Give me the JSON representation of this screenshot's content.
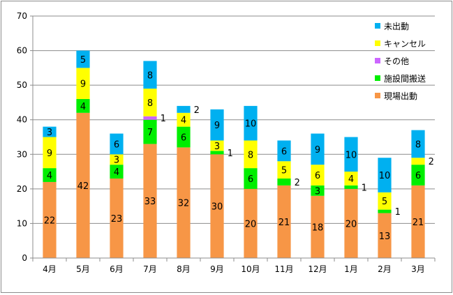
{
  "chart_data": {
    "type": "bar",
    "stacked": true,
    "categories": [
      "4月",
      "5月",
      "6月",
      "7月",
      "8月",
      "9月",
      "10月",
      "11月",
      "12月",
      "1月",
      "2月",
      "3月"
    ],
    "series": [
      {
        "name": "現場出動",
        "color": "#f79646",
        "values": [
          22,
          42,
          23,
          33,
          32,
          30,
          20,
          21,
          18,
          20,
          13,
          21
        ]
      },
      {
        "name": "施設間搬送",
        "color": "#00ee00",
        "values": [
          4,
          4,
          4,
          7,
          6,
          1,
          6,
          2,
          3,
          1,
          1,
          6
        ]
      },
      {
        "name": "その他",
        "color": "#cc66ff",
        "values": [
          0,
          0,
          0,
          1,
          0,
          0,
          0,
          0,
          0,
          0,
          0,
          0
        ]
      },
      {
        "name": "キャンセル",
        "color": "#ffff00",
        "values": [
          9,
          9,
          3,
          8,
          4,
          3,
          8,
          5,
          6,
          4,
          5,
          2
        ]
      },
      {
        "name": "未出動",
        "color": "#00b0f0",
        "values": [
          3,
          5,
          6,
          8,
          2,
          9,
          10,
          6,
          9,
          10,
          10,
          8
        ]
      }
    ],
    "ylim": [
      0,
      70
    ],
    "yticks": [
      0,
      10,
      20,
      30,
      40,
      50,
      60,
      70
    ],
    "grid": true,
    "legend": "top-right",
    "legend_order": [
      "未出動",
      "キャンセル",
      "その他",
      "施設間搬送",
      "現場出動"
    ]
  }
}
